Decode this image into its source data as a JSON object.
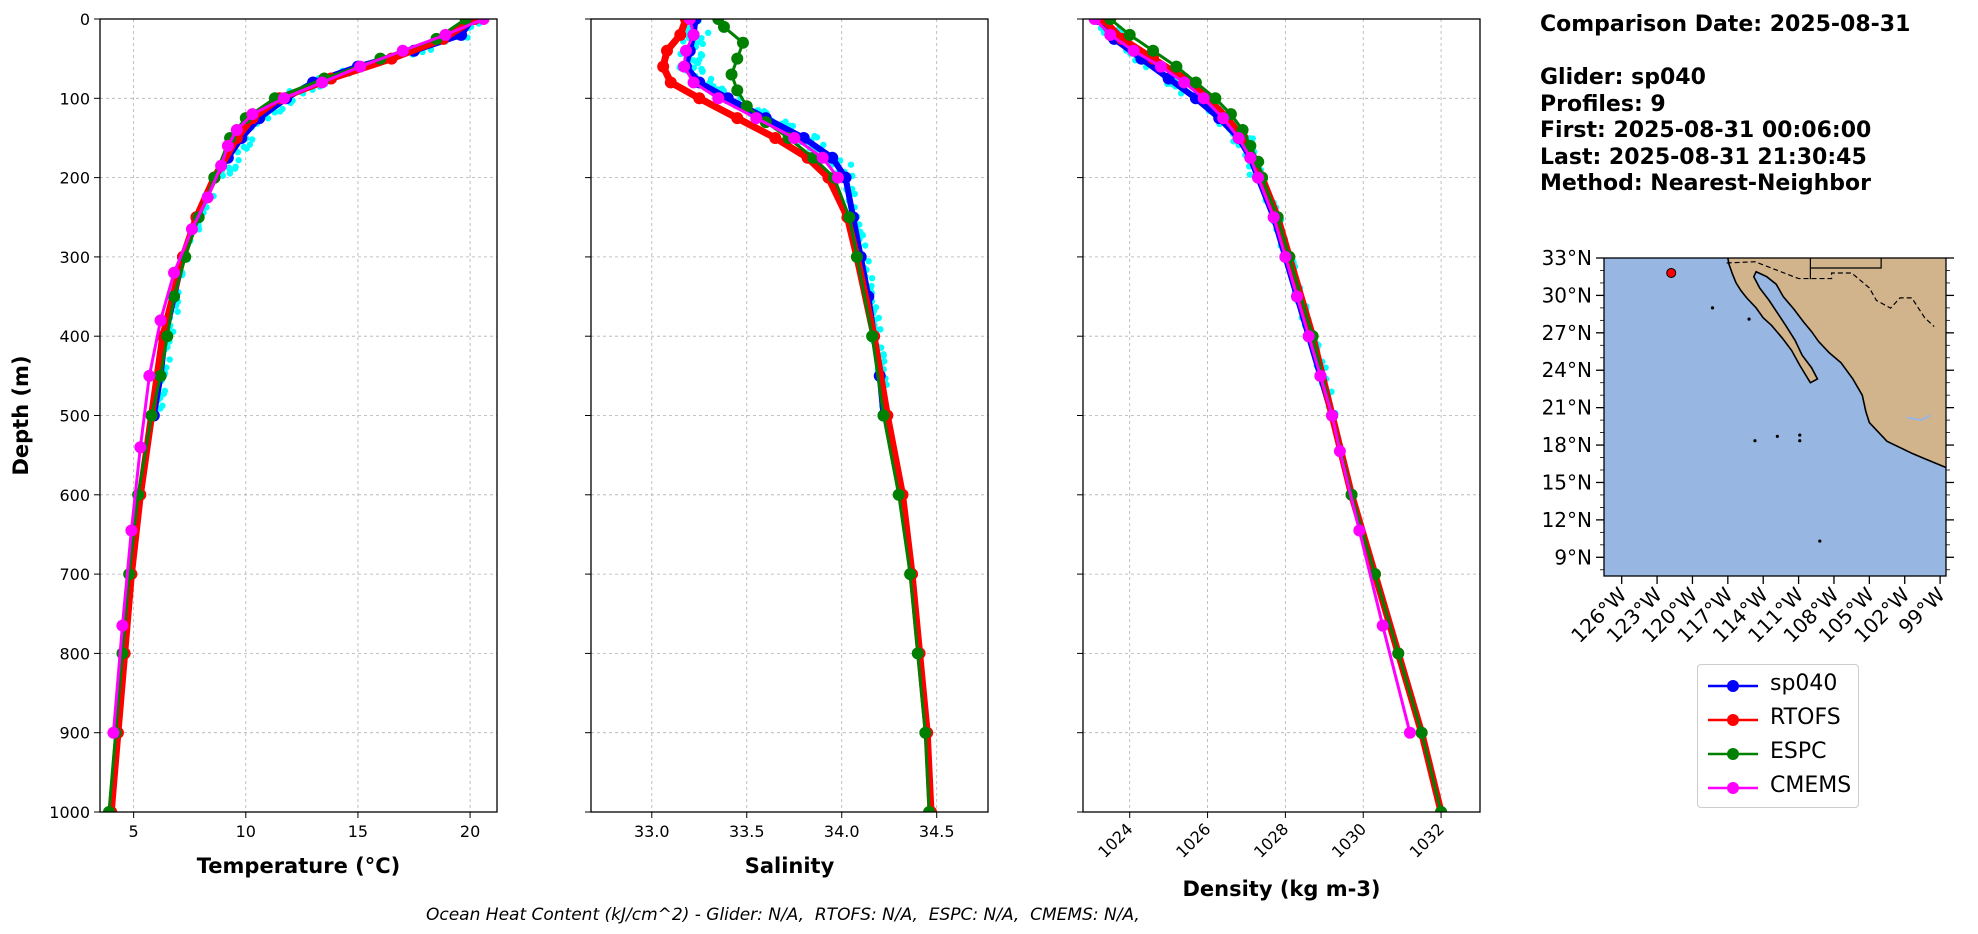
{
  "info": {
    "comparison_date": "Comparison Date: 2025-08-31",
    "glider": "Glider: sp040",
    "profiles": "Profiles: 9",
    "first": "First: 2025-08-31 00:06:00",
    "last": "Last: 2025-08-31 21:30:45",
    "method": "Method: Nearest-Neighbor"
  },
  "footer": "Ocean Heat Content (kJ/cm^2) - Glider: N/A,  RTOFS: N/A,  ESPC: N/A,  CMEMS: N/A,",
  "legend": [
    {
      "label": "sp040",
      "color": "#0000ff"
    },
    {
      "label": "RTOFS",
      "color": "#ff0000"
    },
    {
      "label": "ESPC",
      "color": "#008000"
    },
    {
      "label": "CMEMS",
      "color": "#ff00ff"
    }
  ],
  "colors": {
    "glider_points": "#00ffff",
    "ocean": "#98b6e2",
    "land": "#d2b48c",
    "grid": "#b0b0b0"
  },
  "chart_data": [
    {
      "type": "line",
      "xlabel": "Temperature (°C)",
      "ylabel": "Depth (m)",
      "xlim": [
        3.5,
        21.2
      ],
      "ylim": [
        1000,
        0
      ],
      "xticks": [
        5,
        10,
        15,
        20
      ],
      "yticks": [
        0,
        100,
        200,
        300,
        400,
        500,
        600,
        700,
        800,
        900,
        1000
      ],
      "grid": true,
      "series": [
        {
          "name": "sp040",
          "depth": [
            0,
            20,
            40,
            60,
            80,
            100,
            125,
            150,
            175,
            200,
            250,
            300,
            350,
            400,
            450,
            500
          ],
          "values": [
            20.1,
            19.6,
            17.5,
            15.0,
            13.0,
            11.8,
            10.6,
            9.8,
            9.2,
            8.6,
            7.8,
            7.2,
            6.8,
            6.4,
            6.2,
            5.9
          ]
        },
        {
          "name": "RTOFS",
          "depth": [
            0,
            25,
            50,
            75,
            100,
            125,
            150,
            200,
            250,
            300,
            400,
            500,
            600,
            700,
            800,
            900,
            1000
          ],
          "values": [
            20.2,
            18.8,
            16.5,
            13.8,
            11.5,
            10.3,
            9.6,
            8.6,
            7.8,
            7.2,
            6.3,
            5.8,
            5.3,
            4.9,
            4.6,
            4.3,
            4.0
          ]
        },
        {
          "name": "ESPC",
          "depth": [
            0,
            25,
            50,
            75,
            100,
            125,
            150,
            200,
            250,
            300,
            350,
            400,
            450,
            500,
            600,
            700,
            800,
            900,
            1000
          ],
          "values": [
            19.8,
            18.5,
            16.0,
            13.5,
            11.3,
            10.0,
            9.3,
            8.6,
            7.9,
            7.3,
            6.8,
            6.5,
            6.2,
            5.8,
            5.2,
            4.8,
            4.5,
            4.2,
            3.9
          ]
        },
        {
          "name": "CMEMS",
          "depth": [
            0,
            20,
            40,
            60,
            80,
            100,
            120,
            140,
            160,
            185,
            225,
            265,
            320,
            380,
            450,
            540,
            645,
            765,
            900
          ],
          "values": [
            20.6,
            18.9,
            17.0,
            15.1,
            13.4,
            11.7,
            10.3,
            9.6,
            9.2,
            8.9,
            8.3,
            7.6,
            6.8,
            6.2,
            5.7,
            5.3,
            4.9,
            4.5,
            4.1
          ]
        }
      ]
    },
    {
      "type": "line",
      "xlabel": "Salinity",
      "xlim": [
        32.68,
        34.77
      ],
      "ylim": [
        1000,
        0
      ],
      "xticks": [
        "33.0",
        "33.5",
        "34.0",
        "34.5"
      ],
      "yticks": [
        0,
        100,
        200,
        300,
        400,
        500,
        600,
        700,
        800,
        900,
        1000
      ],
      "grid": true,
      "series": [
        {
          "name": "sp040",
          "depth": [
            0,
            20,
            40,
            60,
            80,
            100,
            125,
            150,
            175,
            200,
            250,
            300,
            350,
            400,
            450,
            500
          ],
          "values": [
            33.23,
            33.22,
            33.2,
            33.18,
            33.25,
            33.4,
            33.6,
            33.8,
            33.95,
            34.02,
            34.06,
            34.1,
            34.14,
            34.17,
            34.2,
            34.22
          ]
        },
        {
          "name": "RTOFS",
          "depth": [
            0,
            20,
            40,
            60,
            80,
            100,
            125,
            150,
            175,
            200,
            250,
            300,
            400,
            500,
            600,
            700,
            800,
            900,
            1000
          ],
          "values": [
            33.18,
            33.15,
            33.08,
            33.06,
            33.1,
            33.25,
            33.45,
            33.65,
            33.82,
            33.93,
            34.03,
            34.08,
            34.17,
            34.24,
            34.32,
            34.37,
            34.41,
            34.45,
            34.47
          ]
        },
        {
          "name": "ESPC",
          "depth": [
            0,
            10,
            30,
            50,
            70,
            90,
            110,
            130,
            150,
            175,
            200,
            250,
            300,
            400,
            500,
            600,
            700,
            800,
            900,
            1000
          ],
          "values": [
            33.35,
            33.38,
            33.48,
            33.45,
            33.42,
            33.45,
            33.5,
            33.6,
            33.72,
            33.85,
            33.96,
            34.04,
            34.08,
            34.16,
            34.22,
            34.3,
            34.36,
            34.4,
            34.44,
            34.46
          ]
        },
        {
          "name": "CMEMS",
          "depth": [
            0,
            20,
            40,
            60,
            80,
            100,
            125,
            150,
            175,
            200
          ],
          "values": [
            33.2,
            33.22,
            33.18,
            33.17,
            33.22,
            33.35,
            33.55,
            33.75,
            33.9,
            33.98
          ]
        }
      ]
    },
    {
      "type": "line",
      "xlabel": "Density (kg m-3)",
      "xlim": [
        1022.8,
        1033.0
      ],
      "ylim": [
        1000,
        0
      ],
      "xticks": [
        "1024",
        "1026",
        "1028",
        "1030",
        "1032"
      ],
      "yticks": [
        0,
        100,
        200,
        300,
        400,
        500,
        600,
        700,
        800,
        900,
        1000
      ],
      "grid": true,
      "series": [
        {
          "name": "sp040",
          "depth": [
            0,
            25,
            50,
            75,
            100,
            125,
            150,
            175,
            200,
            250,
            300,
            350,
            400,
            450,
            500
          ],
          "values": [
            1023.2,
            1023.6,
            1024.3,
            1025.0,
            1025.7,
            1026.3,
            1026.8,
            1027.1,
            1027.3,
            1027.7,
            1028.0,
            1028.3,
            1028.6,
            1028.9,
            1029.2
          ]
        },
        {
          "name": "RTOFS",
          "depth": [
            0,
            25,
            50,
            75,
            100,
            125,
            150,
            200,
            250,
            300,
            400,
            500,
            600,
            700,
            800,
            900,
            1000
          ],
          "values": [
            1023.3,
            1023.8,
            1024.6,
            1025.4,
            1026.0,
            1026.5,
            1026.9,
            1027.4,
            1027.8,
            1028.1,
            1028.7,
            1029.2,
            1029.7,
            1030.3,
            1030.9,
            1031.5,
            1032.0
          ]
        },
        {
          "name": "ESPC",
          "depth": [
            0,
            20,
            40,
            60,
            80,
            100,
            120,
            140,
            160,
            180,
            200,
            250,
            300,
            400,
            500,
            600,
            700,
            800,
            900,
            1000
          ],
          "values": [
            1023.5,
            1024.0,
            1024.6,
            1025.2,
            1025.7,
            1026.2,
            1026.6,
            1026.9,
            1027.1,
            1027.3,
            1027.4,
            1027.8,
            1028.1,
            1028.7,
            1029.2,
            1029.7,
            1030.3,
            1030.9,
            1031.5,
            1032.0
          ]
        },
        {
          "name": "CMEMS",
          "depth": [
            0,
            20,
            40,
            60,
            80,
            100,
            125,
            150,
            175,
            200,
            250,
            300,
            350,
            400,
            450,
            500,
            545,
            645,
            765,
            900
          ],
          "values": [
            1023.1,
            1023.5,
            1024.1,
            1024.8,
            1025.4,
            1025.9,
            1026.4,
            1026.8,
            1027.1,
            1027.3,
            1027.7,
            1028.0,
            1028.3,
            1028.6,
            1028.9,
            1029.2,
            1029.4,
            1029.9,
            1030.5,
            1031.2
          ]
        }
      ]
    }
  ],
  "map": {
    "lat_ticks": [
      "33°N",
      "30°N",
      "27°N",
      "24°N",
      "21°N",
      "18°N",
      "15°N",
      "12°N",
      "9°N"
    ],
    "lon_ticks": [
      "126°W",
      "123°W",
      "120°W",
      "117°W",
      "114°W",
      "111°W",
      "108°W",
      "105°W",
      "102°W",
      "99°W"
    ],
    "glider_position": {
      "lon": -121.8,
      "lat": 31.8
    }
  }
}
